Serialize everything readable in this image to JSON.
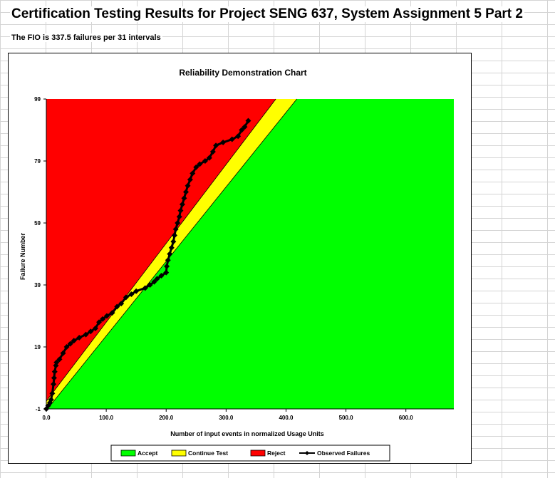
{
  "sheet": {
    "title": "Certification Testing Results for Project SENG 637, System Assignment 5 Part 2",
    "subtitle": "The FIO is 337.5 failures per 31 intervals"
  },
  "colors": {
    "accept": "#00ff00",
    "continue": "#ffff00",
    "reject": "#ff0000",
    "observed": "#000000"
  },
  "chart_data": {
    "type": "line",
    "title": "Reliability Demonstration Chart",
    "xlabel": "Number of input events in normalized Usage Units",
    "ylabel": "Failure Number",
    "xlim": [
      0,
      680
    ],
    "ylim": [
      -1,
      99
    ],
    "x_ticks": [
      "0.0",
      "100.0",
      "200.0",
      "300.0",
      "400.0",
      "500.0",
      "600.0"
    ],
    "y_ticks": [
      "-1",
      "19",
      "39",
      "59",
      "79",
      "99"
    ],
    "grid": false,
    "legend_position": "bottom",
    "regions": [
      {
        "name": "Accept",
        "color": "#00ff00"
      },
      {
        "name": "Continue Test",
        "color": "#ffff00"
      },
      {
        "name": "Reject",
        "color": "#ff0000"
      }
    ],
    "boundaries": {
      "reject_line": {
        "x": [
          0,
          383
        ],
        "y": [
          1.5,
          99
        ]
      },
      "accept_line": {
        "x": [
          2,
          418
        ],
        "y": [
          -1,
          99
        ]
      }
    },
    "series": [
      {
        "name": "Observed Failures",
        "points": [
          [
            0,
            -1
          ],
          [
            3,
            0
          ],
          [
            6,
            1
          ],
          [
            8,
            2
          ],
          [
            10,
            4
          ],
          [
            12,
            7
          ],
          [
            13,
            9
          ],
          [
            14,
            11
          ],
          [
            16,
            13
          ],
          [
            17,
            14
          ],
          [
            22,
            15
          ],
          [
            28,
            17
          ],
          [
            34,
            19
          ],
          [
            40,
            20
          ],
          [
            46,
            21
          ],
          [
            55,
            22
          ],
          [
            66,
            23
          ],
          [
            74,
            24
          ],
          [
            82,
            25
          ],
          [
            88,
            27
          ],
          [
            94,
            28
          ],
          [
            101,
            29
          ],
          [
            110,
            30
          ],
          [
            118,
            32
          ],
          [
            125,
            33
          ],
          [
            133,
            35
          ],
          [
            142,
            36
          ],
          [
            150,
            37
          ],
          [
            165,
            38
          ],
          [
            173,
            39
          ],
          [
            180,
            40
          ],
          [
            185,
            41
          ],
          [
            192,
            42
          ],
          [
            200,
            43
          ],
          [
            201,
            45
          ],
          [
            203,
            47
          ],
          [
            206,
            49
          ],
          [
            209,
            51
          ],
          [
            212,
            53
          ],
          [
            214,
            55
          ],
          [
            216,
            57
          ],
          [
            219,
            59
          ],
          [
            222,
            61
          ],
          [
            224,
            63
          ],
          [
            227,
            65
          ],
          [
            230,
            67
          ],
          [
            233,
            69
          ],
          [
            236,
            71
          ],
          [
            240,
            73
          ],
          [
            244,
            75
          ],
          [
            250,
            77
          ],
          [
            256,
            78
          ],
          [
            265,
            79
          ],
          [
            272,
            80
          ],
          [
            278,
            82
          ],
          [
            283,
            84
          ],
          [
            295,
            85
          ],
          [
            310,
            86
          ],
          [
            320,
            87
          ],
          [
            326,
            89
          ],
          [
            331,
            90
          ],
          [
            337,
            92
          ]
        ]
      }
    ]
  }
}
